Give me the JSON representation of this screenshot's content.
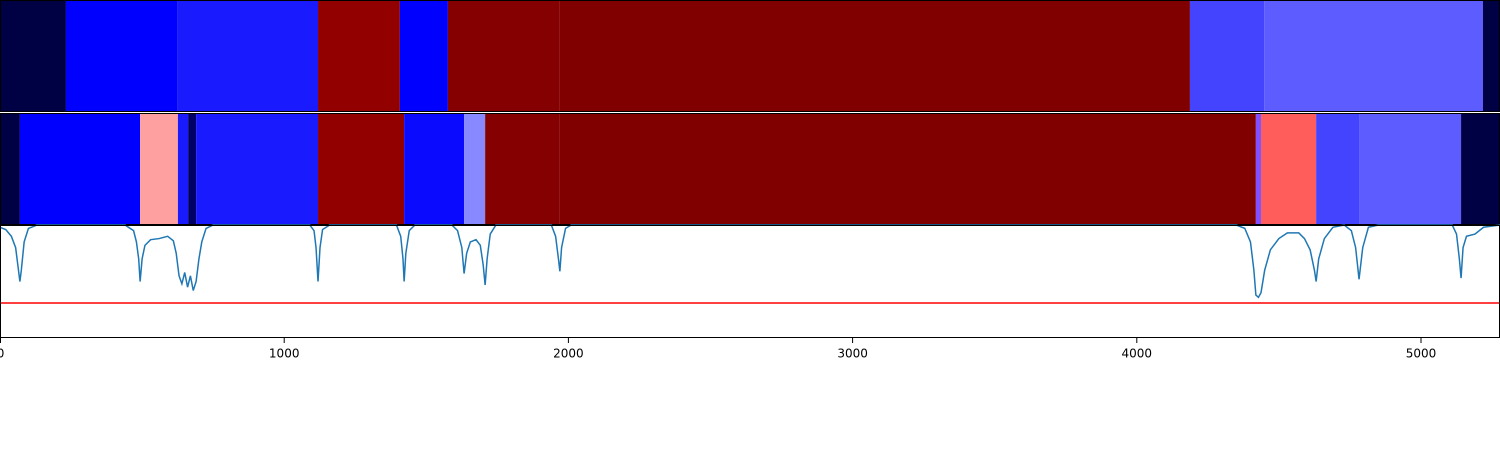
{
  "chart_data": [
    {
      "type": "segment",
      "xlim": [
        0,
        5278
      ],
      "segments": [
        {
          "start": 0,
          "end": 232,
          "color": "#000044"
        },
        {
          "start": 232,
          "end": 623,
          "color": "#0000ff"
        },
        {
          "start": 623,
          "end": 1119,
          "color": "#1a1aff"
        },
        {
          "start": 1119,
          "end": 1407,
          "color": "#920000"
        },
        {
          "start": 1407,
          "end": 1576,
          "color": "#0000ff"
        },
        {
          "start": 1576,
          "end": 1970,
          "color": "#850000"
        },
        {
          "start": 1970,
          "end": 4187,
          "color": "#800000"
        },
        {
          "start": 4187,
          "end": 4448,
          "color": "#4444ff"
        },
        {
          "start": 4448,
          "end": 5218,
          "color": "#5c5cff"
        },
        {
          "start": 5218,
          "end": 5278,
          "color": "#000044"
        }
      ]
    },
    {
      "type": "segment",
      "xlim": [
        0,
        5278
      ],
      "segments": [
        {
          "start": 0,
          "end": 70,
          "color": "#000044"
        },
        {
          "start": 70,
          "end": 493,
          "color": "#0000ff"
        },
        {
          "start": 493,
          "end": 626,
          "color": "#ffa0a0"
        },
        {
          "start": 626,
          "end": 662,
          "color": "#1a1aff"
        },
        {
          "start": 662,
          "end": 690,
          "color": "#000066"
        },
        {
          "start": 690,
          "end": 1119,
          "color": "#1a1aff"
        },
        {
          "start": 1119,
          "end": 1422,
          "color": "#920000"
        },
        {
          "start": 1422,
          "end": 1633,
          "color": "#0a0aff"
        },
        {
          "start": 1633,
          "end": 1707,
          "color": "#8888ff"
        },
        {
          "start": 1707,
          "end": 1970,
          "color": "#850000"
        },
        {
          "start": 1970,
          "end": 4419,
          "color": "#800000"
        },
        {
          "start": 4419,
          "end": 4437,
          "color": "#8050ff"
        },
        {
          "start": 4437,
          "end": 4631,
          "color": "#ff5c5c"
        },
        {
          "start": 4631,
          "end": 4782,
          "color": "#4444ff"
        },
        {
          "start": 4782,
          "end": 5141,
          "color": "#5c5cff"
        },
        {
          "start": 5141,
          "end": 5278,
          "color": "#000044"
        }
      ]
    },
    {
      "type": "line",
      "xlim": [
        0,
        5278
      ],
      "ylim": [
        0,
        1
      ],
      "xticks": [
        0,
        1000,
        2000,
        3000,
        4000,
        5000
      ],
      "threshold": 0.31,
      "threshold_color": "#ff0000",
      "series": [
        {
          "color": "#1f77b4",
          "x": [
            0,
            20,
            40,
            55,
            65,
            70,
            75,
            85,
            100,
            130,
            440,
            470,
            480,
            488,
            493,
            500,
            510,
            530,
            560,
            590,
            610,
            620,
            630,
            640,
            650,
            660,
            670,
            680,
            690,
            700,
            710,
            725,
            750,
            1090,
            1105,
            1112,
            1119,
            1126,
            1135,
            1160,
            1395,
            1410,
            1418,
            1422,
            1428,
            1440,
            1460,
            1590,
            1610,
            1625,
            1633,
            1642,
            1655,
            1675,
            1690,
            1700,
            1707,
            1714,
            1725,
            1745,
            1940,
            1955,
            1965,
            1970,
            1976,
            1990,
            2010,
            4350,
            4380,
            4400,
            4412,
            4419,
            4428,
            4437,
            4450,
            4470,
            4500,
            4530,
            4570,
            4590,
            4610,
            4625,
            4631,
            4640,
            4660,
            4690,
            4730,
            4755,
            4770,
            4782,
            4795,
            4815,
            4850,
            5110,
            5125,
            5135,
            5141,
            5148,
            5160,
            5190,
            5220,
            5278
          ],
          "values": [
            0.98,
            0.96,
            0.9,
            0.8,
            0.6,
            0.5,
            0.6,
            0.85,
            0.97,
            1.0,
            1.0,
            0.95,
            0.85,
            0.7,
            0.5,
            0.7,
            0.82,
            0.87,
            0.88,
            0.9,
            0.86,
            0.75,
            0.55,
            0.48,
            0.58,
            0.45,
            0.55,
            0.42,
            0.5,
            0.7,
            0.85,
            0.97,
            1.0,
            1.0,
            0.95,
            0.8,
            0.5,
            0.8,
            0.96,
            1.0,
            1.0,
            0.9,
            0.7,
            0.5,
            0.75,
            0.95,
            1.0,
            1.0,
            0.95,
            0.8,
            0.57,
            0.75,
            0.85,
            0.87,
            0.82,
            0.65,
            0.47,
            0.7,
            0.92,
            1.0,
            1.0,
            0.9,
            0.7,
            0.59,
            0.8,
            0.97,
            1.0,
            1.0,
            0.97,
            0.85,
            0.6,
            0.38,
            0.36,
            0.4,
            0.6,
            0.78,
            0.88,
            0.93,
            0.93,
            0.88,
            0.78,
            0.6,
            0.5,
            0.7,
            0.88,
            0.98,
            1.0,
            0.95,
            0.8,
            0.52,
            0.8,
            0.98,
            1.0,
            1.0,
            0.92,
            0.7,
            0.53,
            0.8,
            0.9,
            0.92,
            0.98,
            1.0
          ]
        }
      ]
    }
  ]
}
